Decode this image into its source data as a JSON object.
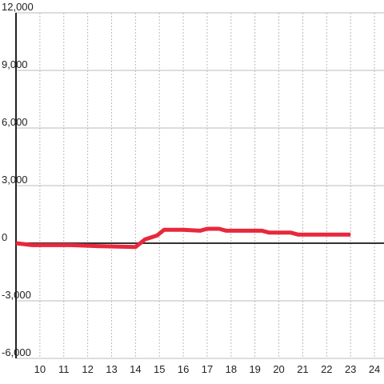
{
  "chart_data": {
    "type": "line",
    "x": [
      9,
      9.67,
      11.3,
      12.4,
      14,
      14.4,
      14.9,
      15.2,
      16,
      16.7,
      17,
      17.5,
      17.8,
      19.3,
      19.6,
      20.5,
      20.8,
      23
    ],
    "series": [
      {
        "color": "#e8283c",
        "values": [
          0,
          -100,
          -100,
          -150,
          -200,
          200,
          400,
          700,
          700,
          650,
          750,
          750,
          650,
          650,
          550,
          550,
          450,
          450
        ]
      }
    ],
    "xlim": [
      9,
      24.4
    ],
    "xticks": [
      10,
      11,
      12,
      13,
      14,
      15,
      16,
      17,
      18,
      19,
      20,
      21,
      22,
      23,
      24
    ],
    "ylim": [
      -6000,
      12000
    ],
    "yticks": [
      {
        "value": -6000,
        "label": "-6,000"
      },
      {
        "value": -3000,
        "label": "-3,000"
      },
      0,
      {
        "value": 3000,
        "label": "3,000"
      },
      {
        "value": 6000,
        "label": "6,000"
      },
      {
        "value": 9000,
        "label": "9,000"
      },
      {
        "value": 12000,
        "label": "12,000"
      }
    ],
    "grid": true
  }
}
